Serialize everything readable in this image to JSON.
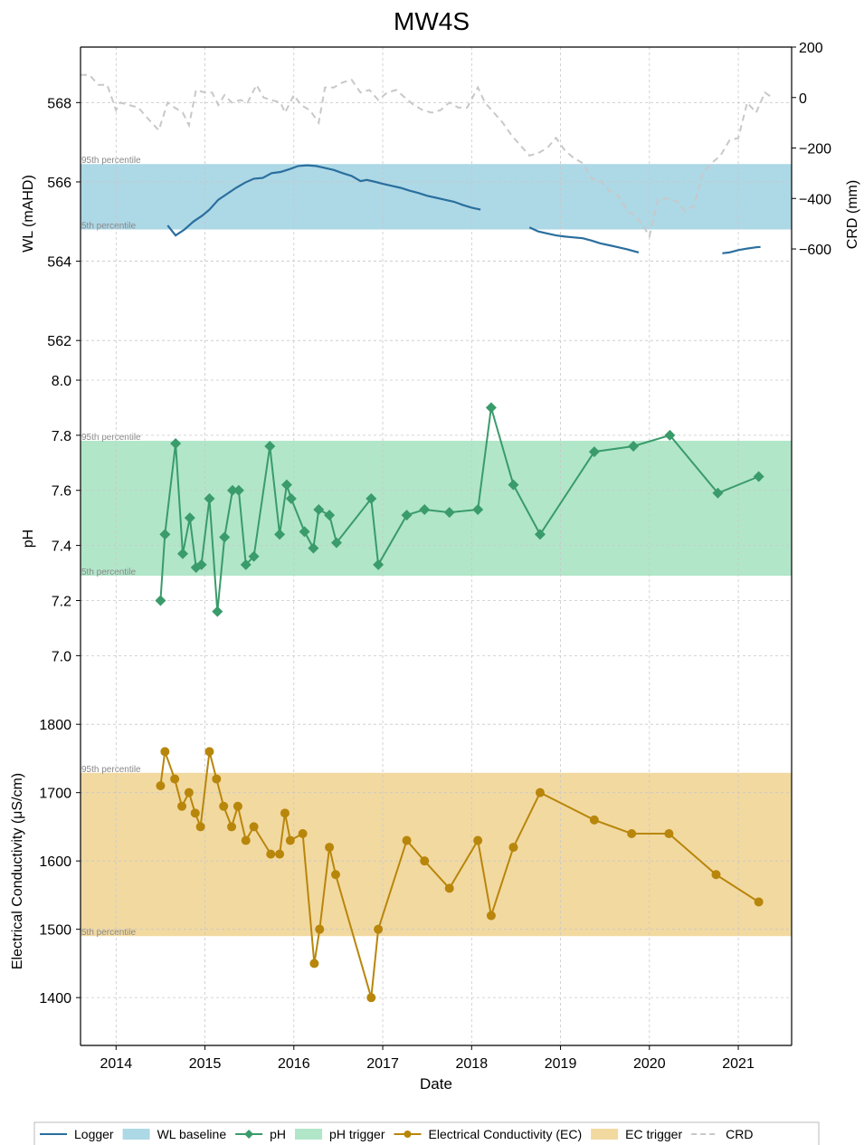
{
  "title": "MW4S",
  "x_axis": {
    "label": "Date",
    "ticks": [
      "2014",
      "2015",
      "2016",
      "2017",
      "2018",
      "2019",
      "2020",
      "2021"
    ],
    "range": [
      2013.6,
      2021.6
    ]
  },
  "percentile_labels": {
    "high": "95th percentile",
    "low": "5th percentile"
  },
  "colors": {
    "logger": "#2a6f9e",
    "wl_band": "#add8e6",
    "ph": "#3a9b6b",
    "ph_band": "#b1e6c9",
    "ec": "#b8860b",
    "ec_band": "#f2d9a0",
    "crd": "#c8c8c8"
  },
  "legend": [
    {
      "label": "Logger",
      "kind": "line",
      "color_key": "logger"
    },
    {
      "label": "WL baseline",
      "kind": "patch",
      "color_key": "wl_band"
    },
    {
      "label": "pH",
      "kind": "line-diamond",
      "color_key": "ph"
    },
    {
      "label": "pH trigger",
      "kind": "patch",
      "color_key": "ph_band"
    },
    {
      "label": "Electrical Conductivity (EC)",
      "kind": "line-circle",
      "color_key": "ec"
    },
    {
      "label": "EC trigger",
      "kind": "patch",
      "color_key": "ec_band"
    },
    {
      "label": "CRD",
      "kind": "dash",
      "color_key": "crd"
    }
  ],
  "chart_data": [
    {
      "type": "line",
      "panel": "water_level",
      "ylabel": "WL (mAHD)",
      "y2label": "CRD (mm)",
      "ylim": [
        561.0,
        569.4
      ],
      "y2lim": [
        -1120,
        200
      ],
      "yticks": [
        "562",
        "564",
        "566",
        "568"
      ],
      "y2ticks": [
        "200",
        "0",
        "−200",
        "−400",
        "−600"
      ],
      "band": {
        "name": "WL baseline",
        "low": 564.8,
        "high": 566.45
      },
      "series": [
        {
          "name": "Logger",
          "segments": [
            [
              [
                2014.58,
                564.9
              ],
              [
                2014.67,
                564.65
              ],
              [
                2014.77,
                564.8
              ],
              [
                2014.87,
                565.0
              ],
              [
                2014.97,
                565.15
              ],
              [
                2015.05,
                565.3
              ],
              [
                2015.15,
                565.55
              ],
              [
                2015.25,
                565.7
              ],
              [
                2015.35,
                565.85
              ],
              [
                2015.45,
                565.98
              ],
              [
                2015.55,
                566.08
              ],
              [
                2015.65,
                566.1
              ],
              [
                2015.75,
                566.22
              ],
              [
                2015.85,
                566.25
              ],
              [
                2015.95,
                566.32
              ],
              [
                2016.05,
                566.4
              ],
              [
                2016.15,
                566.42
              ],
              [
                2016.25,
                566.4
              ],
              [
                2016.35,
                566.35
              ],
              [
                2016.45,
                566.3
              ],
              [
                2016.55,
                566.22
              ],
              [
                2016.65,
                566.15
              ],
              [
                2016.75,
                566.02
              ],
              [
                2016.82,
                566.05
              ],
              [
                2016.92,
                566.0
              ],
              [
                2017.0,
                565.95
              ],
              [
                2017.1,
                565.9
              ],
              [
                2017.2,
                565.85
              ],
              [
                2017.3,
                565.78
              ],
              [
                2017.4,
                565.72
              ],
              [
                2017.5,
                565.65
              ],
              [
                2017.6,
                565.6
              ],
              [
                2017.7,
                565.55
              ],
              [
                2017.8,
                565.5
              ],
              [
                2017.9,
                565.42
              ],
              [
                2018.0,
                565.35
              ],
              [
                2018.1,
                565.3
              ]
            ],
            [
              [
                2018.65,
                564.85
              ],
              [
                2018.75,
                564.75
              ],
              [
                2018.85,
                564.7
              ],
              [
                2018.95,
                564.65
              ],
              [
                2019.05,
                564.62
              ],
              [
                2019.15,
                564.6
              ],
              [
                2019.25,
                564.58
              ],
              [
                2019.35,
                564.52
              ],
              [
                2019.45,
                564.45
              ],
              [
                2019.55,
                564.4
              ],
              [
                2019.65,
                564.35
              ],
              [
                2019.75,
                564.3
              ],
              [
                2019.88,
                564.22
              ]
            ],
            [
              [
                2020.82,
                564.2
              ],
              [
                2020.9,
                564.22
              ],
              [
                2021.0,
                564.28
              ],
              [
                2021.1,
                564.32
              ],
              [
                2021.2,
                564.35
              ],
              [
                2021.25,
                564.36
              ]
            ]
          ]
        },
        {
          "name": "CRD",
          "axis": "right",
          "points": [
            [
              2013.6,
              90
            ],
            [
              2013.7,
              90
            ],
            [
              2013.8,
              50
            ],
            [
              2013.9,
              50
            ],
            [
              2014.0,
              -50
            ],
            [
              2014.05,
              -20
            ],
            [
              2014.15,
              -30
            ],
            [
              2014.25,
              -40
            ],
            [
              2014.35,
              -80
            ],
            [
              2014.48,
              -130
            ],
            [
              2014.58,
              -20
            ],
            [
              2014.66,
              -40
            ],
            [
              2014.75,
              -60
            ],
            [
              2014.82,
              -110
            ],
            [
              2014.9,
              30
            ],
            [
              2015.0,
              20
            ],
            [
              2015.08,
              20
            ],
            [
              2015.15,
              -30
            ],
            [
              2015.22,
              10
            ],
            [
              2015.3,
              -20
            ],
            [
              2015.4,
              -10
            ],
            [
              2015.48,
              -20
            ],
            [
              2015.58,
              50
            ],
            [
              2015.66,
              0
            ],
            [
              2015.75,
              -10
            ],
            [
              2015.85,
              -20
            ],
            [
              2015.9,
              -60
            ],
            [
              2016.0,
              10
            ],
            [
              2016.08,
              -30
            ],
            [
              2016.18,
              -50
            ],
            [
              2016.28,
              -100
            ],
            [
              2016.35,
              40
            ],
            [
              2016.45,
              40
            ],
            [
              2016.55,
              60
            ],
            [
              2016.65,
              70
            ],
            [
              2016.75,
              20
            ],
            [
              2016.85,
              30
            ],
            [
              2016.95,
              -10
            ],
            [
              2017.05,
              20
            ],
            [
              2017.15,
              30
            ],
            [
              2017.25,
              0
            ],
            [
              2017.35,
              -30
            ],
            [
              2017.45,
              -50
            ],
            [
              2017.55,
              -60
            ],
            [
              2017.65,
              -50
            ],
            [
              2017.75,
              -20
            ],
            [
              2017.85,
              -40
            ],
            [
              2017.95,
              -40
            ],
            [
              2018.07,
              40
            ],
            [
              2018.15,
              -20
            ],
            [
              2018.25,
              -60
            ],
            [
              2018.35,
              -100
            ],
            [
              2018.45,
              -150
            ],
            [
              2018.55,
              -190
            ],
            [
              2018.65,
              -230
            ],
            [
              2018.75,
              -220
            ],
            [
              2018.85,
              -200
            ],
            [
              2018.95,
              -160
            ],
            [
              2019.05,
              -210
            ],
            [
              2019.15,
              -240
            ],
            [
              2019.25,
              -260
            ],
            [
              2019.35,
              -320
            ],
            [
              2019.45,
              -330
            ],
            [
              2019.55,
              -370
            ],
            [
              2019.65,
              -390
            ],
            [
              2019.75,
              -450
            ],
            [
              2019.85,
              -470
            ],
            [
              2019.95,
              -520
            ],
            [
              2020.0,
              -550
            ],
            [
              2020.1,
              -400
            ],
            [
              2020.2,
              -400
            ],
            [
              2020.3,
              -410
            ],
            [
              2020.4,
              -450
            ],
            [
              2020.5,
              -430
            ],
            [
              2020.6,
              -300
            ],
            [
              2020.7,
              -260
            ],
            [
              2020.8,
              -230
            ],
            [
              2020.9,
              -170
            ],
            [
              2021.0,
              -160
            ],
            [
              2021.1,
              -20
            ],
            [
              2021.2,
              -60
            ],
            [
              2021.3,
              20
            ],
            [
              2021.38,
              0
            ]
          ]
        }
      ]
    },
    {
      "type": "line",
      "panel": "ph",
      "ylabel": "pH",
      "ylim": [
        6.85,
        8.0
      ],
      "yticks": [
        "7.0",
        "7.2",
        "7.4",
        "7.6",
        "7.8",
        "8.0"
      ],
      "band": {
        "name": "pH trigger",
        "low": 7.29,
        "high": 7.78
      },
      "series": [
        {
          "name": "pH",
          "marker": "diamond",
          "points": [
            [
              2014.5,
              7.2
            ],
            [
              2014.55,
              7.44
            ],
            [
              2014.67,
              7.77
            ],
            [
              2014.75,
              7.37
            ],
            [
              2014.83,
              7.5
            ],
            [
              2014.9,
              7.32
            ],
            [
              2014.96,
              7.33
            ],
            [
              2015.05,
              7.57
            ],
            [
              2015.14,
              7.16
            ],
            [
              2015.22,
              7.43
            ],
            [
              2015.31,
              7.6
            ],
            [
              2015.38,
              7.6
            ],
            [
              2015.46,
              7.33
            ],
            [
              2015.55,
              7.36
            ],
            [
              2015.73,
              7.76
            ],
            [
              2015.84,
              7.44
            ],
            [
              2015.92,
              7.62
            ],
            [
              2015.97,
              7.57
            ],
            [
              2016.12,
              7.45
            ],
            [
              2016.22,
              7.39
            ],
            [
              2016.28,
              7.53
            ],
            [
              2016.4,
              7.51
            ],
            [
              2016.48,
              7.41
            ],
            [
              2016.87,
              7.57
            ],
            [
              2016.95,
              7.33
            ],
            [
              2017.27,
              7.51
            ],
            [
              2017.47,
              7.53
            ],
            [
              2017.75,
              7.52
            ],
            [
              2018.07,
              7.53
            ],
            [
              2018.22,
              7.9
            ],
            [
              2018.47,
              7.62
            ],
            [
              2018.77,
              7.44
            ],
            [
              2019.38,
              7.74
            ],
            [
              2019.82,
              7.76
            ],
            [
              2020.23,
              7.8
            ],
            [
              2020.77,
              7.59
            ],
            [
              2021.23,
              7.65
            ]
          ]
        }
      ]
    },
    {
      "type": "line",
      "panel": "ec",
      "ylabel": "Electrical Conductivity (μS/cm)",
      "ylim": [
        1330,
        1840
      ],
      "yticks": [
        "1400",
        "1500",
        "1600",
        "1700",
        "1800"
      ],
      "band": {
        "name": "EC trigger",
        "low": 1490,
        "high": 1729
      },
      "series": [
        {
          "name": "Electrical Conductivity (EC)",
          "marker": "circle",
          "points": [
            [
              2014.5,
              1710
            ],
            [
              2014.55,
              1760
            ],
            [
              2014.66,
              1720
            ],
            [
              2014.74,
              1680
            ],
            [
              2014.82,
              1700
            ],
            [
              2014.89,
              1670
            ],
            [
              2014.95,
              1650
            ],
            [
              2015.05,
              1760
            ],
            [
              2015.13,
              1720
            ],
            [
              2015.21,
              1680
            ],
            [
              2015.3,
              1650
            ],
            [
              2015.37,
              1680
            ],
            [
              2015.46,
              1630
            ],
            [
              2015.55,
              1650
            ],
            [
              2015.74,
              1610
            ],
            [
              2015.84,
              1610
            ],
            [
              2015.9,
              1670
            ],
            [
              2015.96,
              1630
            ],
            [
              2016.1,
              1640
            ],
            [
              2016.23,
              1450
            ],
            [
              2016.29,
              1500
            ],
            [
              2016.4,
              1620
            ],
            [
              2016.47,
              1580
            ],
            [
              2016.87,
              1400
            ],
            [
              2016.95,
              1500
            ],
            [
              2017.27,
              1630
            ],
            [
              2017.47,
              1600
            ],
            [
              2017.75,
              1560
            ],
            [
              2018.07,
              1630
            ],
            [
              2018.22,
              1520
            ],
            [
              2018.47,
              1620
            ],
            [
              2018.77,
              1700
            ],
            [
              2019.38,
              1660
            ],
            [
              2019.8,
              1640
            ],
            [
              2020.22,
              1640
            ],
            [
              2020.75,
              1580
            ],
            [
              2021.23,
              1540
            ]
          ]
        }
      ]
    }
  ]
}
